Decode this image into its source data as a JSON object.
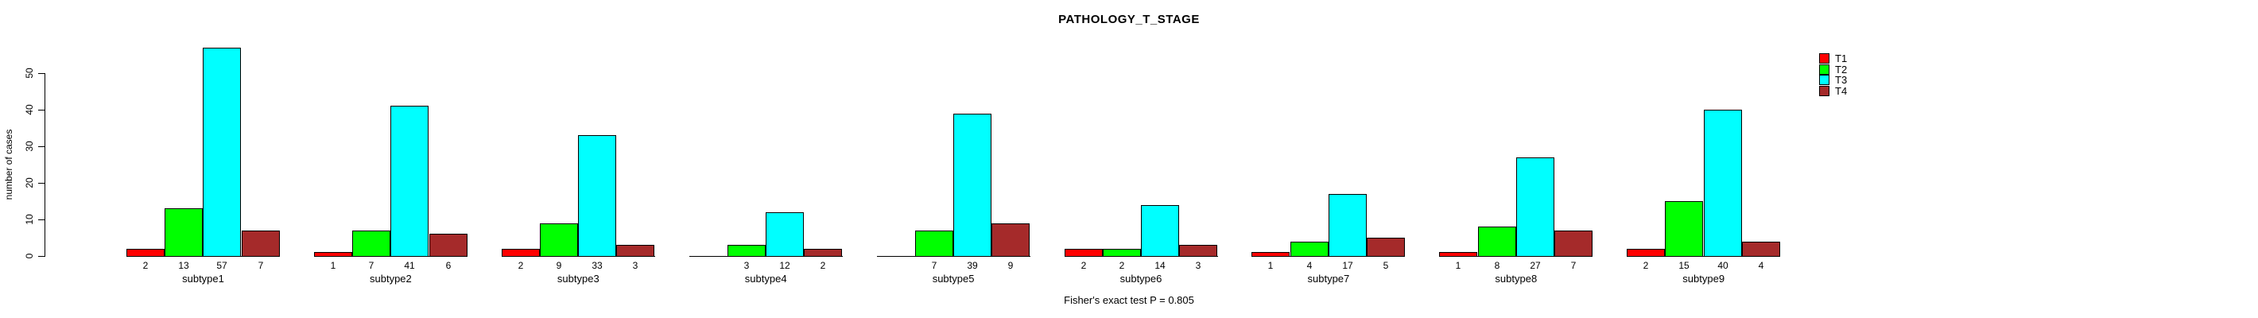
{
  "title": "PATHOLOGY_T_STAGE",
  "annotation": "Fisher's exact test P = 0.805",
  "chart_data": {
    "type": "bar",
    "title": "PATHOLOGY_T_STAGE",
    "xlabel": "",
    "ylabel": "number of cases",
    "ylim": [
      0,
      57
    ],
    "yticks": [
      0,
      10,
      20,
      30,
      40,
      50
    ],
    "grid": false,
    "legend_position": "top-right",
    "bar_value_labels": true,
    "hide_zero_value_labels": true,
    "categories": [
      "subtype1",
      "subtype2",
      "subtype3",
      "subtype4",
      "subtype5",
      "subtype6",
      "subtype7",
      "subtype8",
      "subtype9"
    ],
    "series": [
      {
        "name": "T1",
        "color": "#FF0000",
        "values": [
          2,
          1,
          2,
          0,
          0,
          2,
          1,
          1,
          2
        ]
      },
      {
        "name": "T2",
        "color": "#00FF00",
        "values": [
          13,
          7,
          9,
          3,
          7,
          2,
          4,
          8,
          15
        ]
      },
      {
        "name": "T3",
        "color": "#00FFFF",
        "values": [
          57,
          41,
          33,
          12,
          39,
          14,
          17,
          27,
          40
        ]
      },
      {
        "name": "T4",
        "color": "#A52A2A",
        "values": [
          7,
          6,
          3,
          2,
          9,
          3,
          5,
          7,
          4
        ]
      }
    ],
    "annotation": "Fisher's exact test P = 0.805"
  },
  "legend": {
    "items": [
      {
        "label": "T1",
        "color": "#FF0000"
      },
      {
        "label": "T2",
        "color": "#00FF00"
      },
      {
        "label": "T3",
        "color": "#00FFFF"
      },
      {
        "label": "T4",
        "color": "#A52A2A"
      }
    ]
  }
}
